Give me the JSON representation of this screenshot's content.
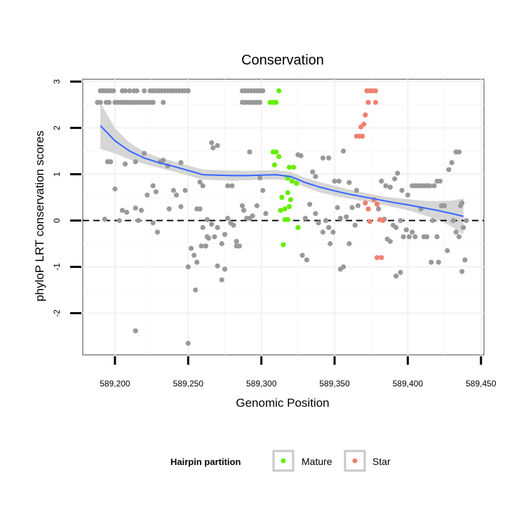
{
  "chart_data": {
    "type": "scatter",
    "title": "Conservation",
    "xlabel": "Genomic Position",
    "ylabel": "phyloP LRT conservation scores",
    "xlim": [
      589178,
      589452
    ],
    "ylim": [
      -2.9,
      3.05
    ],
    "x_ticks": [
      589200,
      589250,
      589300,
      589350,
      589400,
      589450
    ],
    "x_tick_labels": [
      "589,200",
      "589,250",
      "589,300",
      "589,350",
      "589,400",
      "589,450"
    ],
    "y_ticks": [
      -2,
      -1,
      0,
      1,
      2,
      3
    ],
    "y_tick_labels": [
      "-2",
      "-1",
      "0",
      "1",
      "2",
      "3"
    ],
    "grid": true,
    "reference_line": {
      "y": 0,
      "style": "dashed",
      "color": "#000000"
    },
    "legend": {
      "title": "Hairpin partition",
      "placement": "bottom",
      "entries": [
        {
          "label": "Mature",
          "color": "#66ee00"
        },
        {
          "label": "Star",
          "color": "#f08070"
        }
      ]
    },
    "colors": {
      "other": "#999999",
      "Mature": "#66ee00",
      "Star": "#f08070",
      "smooth": "#3366ff",
      "band": "#c8c8c8"
    },
    "series": [
      {
        "name": "Other",
        "points": [
          [
            589190,
            2.8
          ],
          [
            589192,
            2.8
          ],
          [
            589193,
            2.8
          ],
          [
            589195,
            2.8
          ],
          [
            589197,
            2.8
          ],
          [
            589199,
            2.8
          ],
          [
            589205,
            2.8
          ],
          [
            589207,
            2.8
          ],
          [
            589210,
            2.8
          ],
          [
            589213,
            2.8
          ],
          [
            589215,
            2.8
          ],
          [
            589220,
            2.8
          ],
          [
            589224,
            2.8
          ],
          [
            589226,
            2.8
          ],
          [
            589228,
            2.8
          ],
          [
            589230,
            2.8
          ],
          [
            589232,
            2.8
          ],
          [
            589234,
            2.8
          ],
          [
            589236,
            2.8
          ],
          [
            589238,
            2.8
          ],
          [
            589240,
            2.8
          ],
          [
            589242,
            2.8
          ],
          [
            589244,
            2.8
          ],
          [
            589246,
            2.8
          ],
          [
            589248,
            2.8
          ],
          [
            589250,
            2.8
          ],
          [
            589287,
            2.8
          ],
          [
            589289,
            2.8
          ],
          [
            589291,
            2.8
          ],
          [
            589293,
            2.8
          ],
          [
            589295,
            2.8
          ],
          [
            589297,
            2.8
          ],
          [
            589299,
            2.8
          ],
          [
            589301,
            2.8
          ],
          [
            589188,
            2.55
          ],
          [
            589190,
            2.55
          ],
          [
            589194,
            2.55
          ],
          [
            589196,
            2.55
          ],
          [
            589200,
            2.55
          ],
          [
            589202,
            2.55
          ],
          [
            589204,
            2.55
          ],
          [
            589206,
            2.55
          ],
          [
            589208,
            2.55
          ],
          [
            589210,
            2.55
          ],
          [
            589212,
            2.55
          ],
          [
            589214,
            2.55
          ],
          [
            589216,
            2.55
          ],
          [
            589218,
            2.55
          ],
          [
            589220,
            2.55
          ],
          [
            589222,
            2.55
          ],
          [
            589224,
            2.55
          ],
          [
            589226,
            2.55
          ],
          [
            589233,
            2.55
          ],
          [
            589287,
            2.55
          ],
          [
            589289,
            2.55
          ],
          [
            589291,
            2.55
          ],
          [
            589293,
            2.55
          ],
          [
            589295,
            2.55
          ],
          [
            589297,
            2.55
          ],
          [
            589299,
            2.55
          ],
          [
            589195,
            1.27
          ],
          [
            589197,
            1.27
          ],
          [
            589200,
            0.68
          ],
          [
            589207,
            1.22
          ],
          [
            589214,
            1.27
          ],
          [
            589220,
            1.45
          ],
          [
            589226,
            0.75
          ],
          [
            589228,
            0.62
          ],
          [
            589231,
            1.27
          ],
          [
            589233,
            1.3
          ],
          [
            589236,
            1.18
          ],
          [
            589240,
            0.65
          ],
          [
            589242,
            0.55
          ],
          [
            589248,
            0.65
          ],
          [
            589245,
            1.25
          ],
          [
            589258,
            0.83
          ],
          [
            589260,
            0.75
          ],
          [
            589266,
            1.68
          ],
          [
            589267,
            1.57
          ],
          [
            589270,
            1.62
          ],
          [
            589277,
            0.75
          ],
          [
            589280,
            0.75
          ],
          [
            589288,
            0.22
          ],
          [
            589292,
            1.48
          ],
          [
            589299,
            0.92
          ],
          [
            589301,
            0.65
          ],
          [
            589325,
            1.42
          ],
          [
            589327,
            1.4
          ],
          [
            589335,
            1.05
          ],
          [
            589337,
            0.95
          ],
          [
            589342,
            1.35
          ],
          [
            589346,
            1.35
          ],
          [
            589350,
            0.85
          ],
          [
            589353,
            0.85
          ],
          [
            589356,
            1.5
          ],
          [
            589360,
            0.82
          ],
          [
            589365,
            0.65
          ],
          [
            589382,
            0.85
          ],
          [
            589385,
            0.75
          ],
          [
            589388,
            0.72
          ],
          [
            589391,
            0.9
          ],
          [
            589393,
            1.02
          ],
          [
            589396,
            0.65
          ],
          [
            589400,
            0.55
          ],
          [
            589403,
            0.75
          ],
          [
            589405,
            0.75
          ],
          [
            589407,
            0.75
          ],
          [
            589409,
            0.75
          ],
          [
            589411,
            0.75
          ],
          [
            589413,
            0.75
          ],
          [
            589415,
            0.75
          ],
          [
            589418,
            0.75
          ],
          [
            589420,
            0.85
          ],
          [
            589422,
            0.85
          ],
          [
            589428,
            1.1
          ],
          [
            589430,
            1.25
          ],
          [
            589433,
            1.48
          ],
          [
            589435,
            1.48
          ],
          [
            589193,
            0.03
          ],
          [
            589203,
            0.0
          ],
          [
            589205,
            0.22
          ],
          [
            589208,
            0.18
          ],
          [
            589214,
            0.27
          ],
          [
            589216,
            0.0
          ],
          [
            589218,
            0.22
          ],
          [
            589222,
            0.55
          ],
          [
            589226,
            -0.05
          ],
          [
            589229,
            -0.25
          ],
          [
            589237,
            0.25
          ],
          [
            589245,
            0.3
          ],
          [
            589256,
            0.25
          ],
          [
            589258,
            0.25
          ],
          [
            589263,
            0.02
          ],
          [
            589260,
            -0.15
          ],
          [
            589264,
            -0.38
          ],
          [
            589262,
            -0.55
          ],
          [
            589266,
            -0.08
          ],
          [
            589268,
            -0.35
          ],
          [
            589270,
            -0.15
          ],
          [
            589273,
            -0.5
          ],
          [
            589275,
            -0.3
          ],
          [
            589277,
            0.05
          ],
          [
            589279,
            -0.05
          ],
          [
            589281,
            -0.1
          ],
          [
            589283,
            -0.45
          ],
          [
            589285,
            -0.55
          ],
          [
            589287,
            0.32
          ],
          [
            589290,
            0.05
          ],
          [
            589292,
            0.05
          ],
          [
            589294,
            0.1
          ],
          [
            589297,
            0.32
          ],
          [
            589303,
            0.15
          ],
          [
            589330,
            0.05
          ],
          [
            589333,
            0.35
          ],
          [
            589337,
            0.15
          ],
          [
            589339,
            -0.05
          ],
          [
            589342,
            -0.25
          ],
          [
            589344,
            0.0
          ],
          [
            589346,
            -0.15
          ],
          [
            589349,
            -0.25
          ],
          [
            589352,
            0.28
          ],
          [
            589354,
            0.05
          ],
          [
            589358,
            0.08
          ],
          [
            589360,
            -0.5
          ],
          [
            589362,
            0.28
          ],
          [
            589364,
            -0.1
          ],
          [
            589366,
            0.32
          ],
          [
            589380,
            0.25
          ],
          [
            589384,
            0.03
          ],
          [
            589386,
            -0.4
          ],
          [
            589388,
            -0.45
          ],
          [
            589390,
            -0.1
          ],
          [
            589392,
            -0.15
          ],
          [
            589395,
            0.0
          ],
          [
            589397,
            -0.35
          ],
          [
            589399,
            -0.2
          ],
          [
            589401,
            -0.35
          ],
          [
            589403,
            -0.25
          ],
          [
            589405,
            -0.35
          ],
          [
            589409,
            0.25
          ],
          [
            589411,
            -0.35
          ],
          [
            589413,
            -0.35
          ],
          [
            589417,
            0.0
          ],
          [
            589420,
            -0.35
          ],
          [
            589423,
            0.32
          ],
          [
            589425,
            0.32
          ],
          [
            589427,
            -0.65
          ],
          [
            589431,
            0.0
          ],
          [
            589433,
            -0.25
          ],
          [
            589435,
            -0.35
          ],
          [
            589436,
            0.32
          ],
          [
            589437,
            0.38
          ],
          [
            589438,
            -0.15
          ],
          [
            589440,
            0.0
          ],
          [
            589250,
            -1.0
          ],
          [
            589252,
            -0.6
          ],
          [
            589254,
            -0.75
          ],
          [
            589256,
            -0.9
          ],
          [
            589259,
            -0.55
          ],
          [
            589263,
            -0.35
          ],
          [
            589270,
            -0.98
          ],
          [
            589273,
            -1.28
          ],
          [
            589275,
            -1.05
          ],
          [
            589283,
            -0.55
          ],
          [
            589328,
            -0.75
          ],
          [
            589331,
            -0.85
          ],
          [
            589347,
            -0.5
          ],
          [
            589354,
            -1.05
          ],
          [
            589356,
            -1.0
          ],
          [
            589392,
            -1.2
          ],
          [
            589395,
            -1.12
          ],
          [
            589416,
            -0.9
          ],
          [
            589421,
            -0.9
          ],
          [
            589437,
            -1.1
          ],
          [
            589439,
            -0.85
          ],
          [
            589214,
            -2.38
          ],
          [
            589250,
            -2.65
          ],
          [
            589255,
            -1.5
          ]
        ]
      },
      {
        "name": "Mature",
        "points": [
          [
            589306,
            2.55
          ],
          [
            589308,
            2.55
          ],
          [
            589310,
            2.55
          ],
          [
            589312,
            2.8
          ],
          [
            589308,
            1.48
          ],
          [
            589310,
            1.48
          ],
          [
            589312,
            1.38
          ],
          [
            589309,
            1.2
          ],
          [
            589319,
            1.15
          ],
          [
            589322,
            1.15
          ],
          [
            589318,
            0.92
          ],
          [
            589321,
            0.85
          ],
          [
            589324,
            0.8
          ],
          [
            589314,
            0.5
          ],
          [
            589318,
            0.6
          ],
          [
            589320,
            0.45
          ],
          [
            589313,
            0.22
          ],
          [
            589316,
            0.25
          ],
          [
            589319,
            0.3
          ],
          [
            589316,
            0.02
          ],
          [
            589318,
            0.02
          ],
          [
            589325,
            -0.15
          ],
          [
            589315,
            -0.52
          ]
        ]
      },
      {
        "name": "Star",
        "points": [
          [
            589372,
            2.8
          ],
          [
            589374,
            2.8
          ],
          [
            589376,
            2.8
          ],
          [
            589378,
            2.8
          ],
          [
            589373,
            2.55
          ],
          [
            589378,
            2.55
          ],
          [
            589371,
            2.28
          ],
          [
            589370,
            2.08
          ],
          [
            589368,
            2.02
          ],
          [
            589365,
            1.82
          ],
          [
            589367,
            1.82
          ],
          [
            589369,
            1.82
          ],
          [
            589371,
            0.38
          ],
          [
            589377,
            0.45
          ],
          [
            589373,
            0.25
          ],
          [
            589379,
            0.35
          ],
          [
            589374,
            -0.02
          ],
          [
            589383,
            0.0
          ],
          [
            589381,
            0.02
          ],
          [
            589379,
            -0.8
          ],
          [
            589382,
            -0.8
          ]
        ]
      }
    ],
    "smooth_line": {
      "name": "loess",
      "x": [
        589190,
        589200,
        589210,
        589220,
        589230,
        589240,
        589250,
        589260,
        589270,
        589280,
        589290,
        589300,
        589310,
        589320,
        589330,
        589340,
        589350,
        589360,
        589370,
        589380,
        589390,
        589400,
        589410,
        589420,
        589430,
        589438
      ],
      "y": [
        2.05,
        1.72,
        1.5,
        1.35,
        1.25,
        1.17,
        1.08,
        0.99,
        0.98,
        0.97,
        0.97,
        0.98,
        0.99,
        0.95,
        0.82,
        0.72,
        0.64,
        0.57,
        0.51,
        0.45,
        0.39,
        0.34,
        0.28,
        0.22,
        0.15,
        0.09
      ],
      "lower": [
        1.55,
        1.45,
        1.32,
        1.22,
        1.14,
        1.06,
        0.97,
        0.88,
        0.87,
        0.86,
        0.87,
        0.88,
        0.89,
        0.85,
        0.72,
        0.61,
        0.53,
        0.47,
        0.42,
        0.36,
        0.29,
        0.22,
        0.13,
        0.02,
        -0.13,
        -0.3
      ],
      "upper": [
        2.55,
        1.99,
        1.68,
        1.48,
        1.36,
        1.28,
        1.19,
        1.1,
        1.09,
        1.08,
        1.07,
        1.08,
        1.09,
        1.05,
        0.92,
        0.83,
        0.75,
        0.67,
        0.6,
        0.54,
        0.49,
        0.46,
        0.43,
        0.42,
        0.43,
        0.48
      ]
    }
  }
}
